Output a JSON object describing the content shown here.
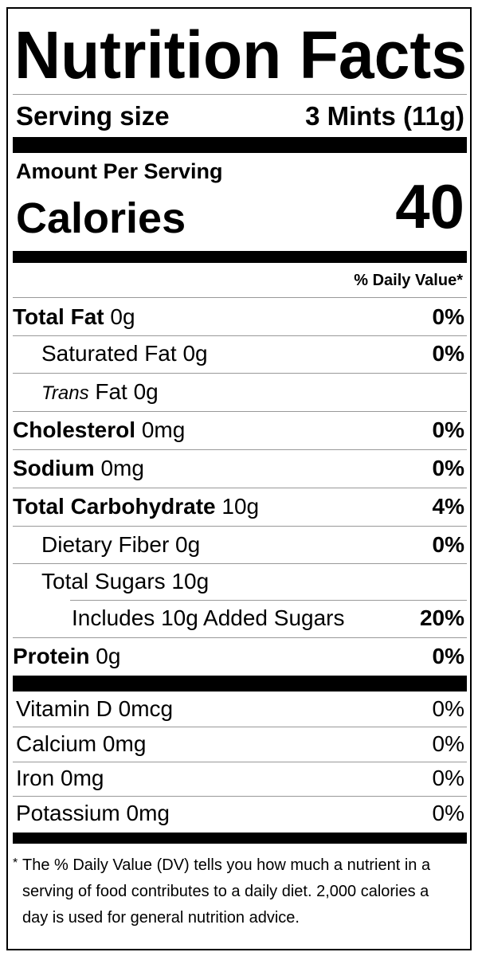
{
  "header": {
    "title": "Nutrition Facts",
    "serving_size_label": "Serving size",
    "serving_size_value": "3 Mints (11g)",
    "amount_per_serving": "Amount Per Serving",
    "calories_label": "Calories",
    "calories_value": "40",
    "daily_value_header": "% Daily Value*"
  },
  "nutrients": [
    {
      "name": "Total Fat",
      "amount": "0g",
      "daily_value": "0%"
    },
    {
      "name": "Saturated Fat",
      "amount": "0g",
      "daily_value": "0%"
    },
    {
      "name_italic": "Trans",
      "name": "Fat",
      "amount": "0g"
    },
    {
      "name": "Cholesterol",
      "amount": "0mg",
      "daily_value": "0%"
    },
    {
      "name": "Sodium",
      "amount": "0mg",
      "daily_value": "0%"
    },
    {
      "name": "Total Carbohydrate",
      "amount": "10g",
      "daily_value": "4%"
    },
    {
      "name": "Dietary Fiber",
      "amount": "0g",
      "daily_value": "0%"
    },
    {
      "name": "Total Sugars",
      "amount": "10g"
    },
    {
      "name": "Includes 10g Added Sugars",
      "daily_value": "20%"
    },
    {
      "name": "Protein",
      "amount": "0g",
      "daily_value": "0%"
    }
  ],
  "vitamins": [
    {
      "name": "Vitamin D",
      "amount": "0mcg",
      "daily_value": "0%"
    },
    {
      "name": "Calcium",
      "amount": "0mg",
      "daily_value": "0%"
    },
    {
      "name": "Iron",
      "amount": "0mg",
      "daily_value": "0%"
    },
    {
      "name": "Potassium",
      "amount": "0mg",
      "daily_value": "0%"
    }
  ],
  "footnote": {
    "mark": "*",
    "text": "The % Daily Value (DV) tells you how much a nutrient in a serving of food contributes to a daily diet. 2,000 calories a day is used for general nutrition advice."
  }
}
